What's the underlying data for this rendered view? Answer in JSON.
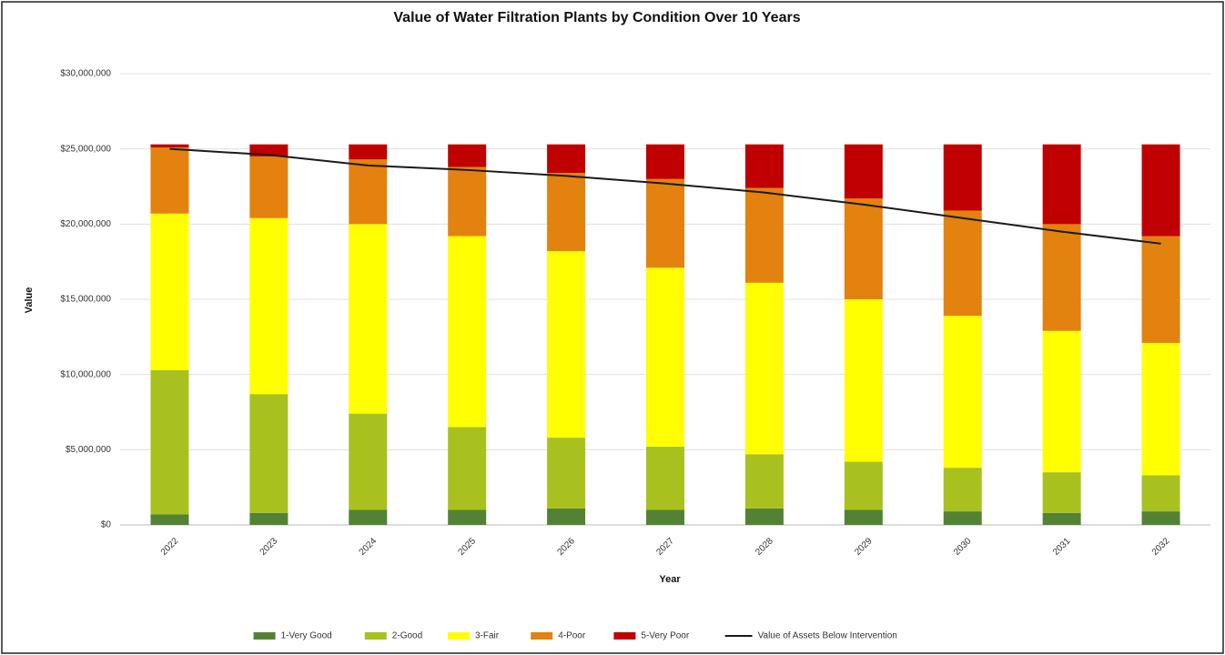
{
  "chart_data": {
    "type": "bar",
    "stacked": true,
    "title": "Value of Water Filtration Plants by Condition Over 10 Years",
    "xlabel": "Year",
    "ylabel": "Value",
    "categories": [
      "2022",
      "2023",
      "2024",
      "2025",
      "2026",
      "2027",
      "2028",
      "2029",
      "2030",
      "2031",
      "2032"
    ],
    "series": [
      {
        "name": "1-Very Good",
        "color": "#548235",
        "values": [
          700000,
          800000,
          1000000,
          1000000,
          1100000,
          1000000,
          1100000,
          1000000,
          900000,
          800000,
          900000
        ]
      },
      {
        "name": "2-Good",
        "color": "#a9c11f",
        "values": [
          9600000,
          7900000,
          6400000,
          5500000,
          4700000,
          4200000,
          3600000,
          3200000,
          2900000,
          2700000,
          2400000
        ]
      },
      {
        "name": "3-Fair",
        "color": "#ffff00",
        "values": [
          10400000,
          11700000,
          12600000,
          12700000,
          12400000,
          11900000,
          11400000,
          10800000,
          10100000,
          9400000,
          8800000
        ]
      },
      {
        "name": "4-Poor",
        "color": "#e3820e",
        "values": [
          4400000,
          4100000,
          4300000,
          4600000,
          5200000,
          5900000,
          6300000,
          6700000,
          7000000,
          7100000,
          7100000
        ]
      },
      {
        "name": "5-Very Poor",
        "color": "#c00000",
        "values": [
          200000,
          800000,
          1000000,
          1500000,
          1900000,
          2300000,
          2900000,
          3600000,
          4400000,
          5300000,
          6100000
        ]
      },
      {
        "name": "Value of Assets Below Intervention",
        "type": "line",
        "color": "#1a1a1a",
        "values": [
          25000000,
          24600000,
          23900000,
          23600000,
          23200000,
          22700000,
          22100000,
          21300000,
          20400000,
          19500000,
          18700000
        ]
      }
    ],
    "ylim": [
      0,
      30000000
    ],
    "yticks": [
      {
        "value": 0,
        "label": "$0"
      },
      {
        "value": 5000000,
        "label": "$5,000,000"
      },
      {
        "value": 10000000,
        "label": "$10,000,000"
      },
      {
        "value": 15000000,
        "label": "$15,000,000"
      },
      {
        "value": 20000000,
        "label": "$20,000,000"
      },
      {
        "value": 25000000,
        "label": "$25,000,000"
      },
      {
        "value": 30000000,
        "label": "$30,000,000"
      }
    ],
    "grid": true,
    "legend": "bottom"
  }
}
